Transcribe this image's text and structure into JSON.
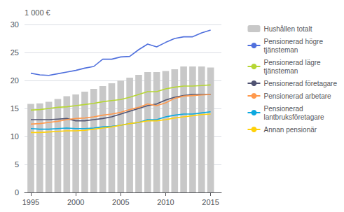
{
  "chart_data": {
    "type": "bar",
    "ylabel": "1 000 €",
    "x": [
      1995,
      1996,
      1997,
      1998,
      1999,
      2000,
      2001,
      2002,
      2003,
      2004,
      2005,
      2006,
      2007,
      2008,
      2009,
      2010,
      2011,
      2012,
      2013,
      2014,
      2015
    ],
    "series": [
      {
        "name": "Hushållen totalt",
        "type": "bar",
        "color": "#c8c8c8",
        "values": [
          15.8,
          15.9,
          16.2,
          16.7,
          17.2,
          17.5,
          18.0,
          18.5,
          19.0,
          19.5,
          20.0,
          20.5,
          21.0,
          21.5,
          21.5,
          21.7,
          22.0,
          22.5,
          22.5,
          22.5,
          22.3
        ]
      },
      {
        "name": "Pensionerad högre\ntjänsteman",
        "type": "line",
        "values": [
          21.3,
          21.0,
          20.9,
          21.2,
          21.5,
          21.8,
          22.2,
          22.5,
          23.8,
          23.8,
          24.2,
          24.3,
          25.5,
          26.5,
          26.0,
          26.8,
          27.5,
          27.8,
          27.8,
          28.5,
          29.0
        ]
      },
      {
        "name": "Pensionerad lägre\ntjänsteman",
        "type": "line",
        "values": [
          14.7,
          14.8,
          15.0,
          15.2,
          15.3,
          15.5,
          15.7,
          15.9,
          16.2,
          16.4,
          16.6,
          17.0,
          17.5,
          18.0,
          18.0,
          18.5,
          18.8,
          19.0,
          19.0,
          19.1,
          19.2
        ]
      },
      {
        "name": "Pensionerad företagare",
        "type": "line",
        "values": [
          13.0,
          13.0,
          13.0,
          13.1,
          13.2,
          12.8,
          12.8,
          13.0,
          13.2,
          13.5,
          14.0,
          14.5,
          15.0,
          15.5,
          15.8,
          16.5,
          17.0,
          17.3,
          17.5,
          17.5,
          17.5
        ]
      },
      {
        "name": "Pensionerad arbetare",
        "type": "line",
        "values": [
          12.2,
          12.3,
          12.5,
          12.7,
          13.0,
          13.2,
          13.3,
          13.5,
          13.8,
          14.0,
          14.3,
          14.8,
          15.2,
          15.8,
          15.5,
          16.0,
          16.8,
          17.2,
          17.3,
          17.4,
          17.5
        ]
      },
      {
        "name": "Pensionerad\nlantbruksföretagare",
        "type": "line",
        "values": [
          11.4,
          11.3,
          11.3,
          11.4,
          11.5,
          11.4,
          11.4,
          11.5,
          11.7,
          11.8,
          12.0,
          12.3,
          12.5,
          13.0,
          13.0,
          13.5,
          13.8,
          14.0,
          14.0,
          14.2,
          14.4
        ]
      },
      {
        "name": "Annan pensionär",
        "type": "line",
        "values": [
          10.7,
          10.7,
          10.8,
          10.9,
          11.0,
          11.0,
          11.1,
          11.3,
          11.5,
          11.7,
          12.0,
          12.3,
          12.5,
          12.8,
          12.8,
          13.0,
          13.3,
          13.5,
          13.7,
          13.9,
          14.0
        ]
      }
    ],
    "xlim": [
      1994.3,
      2016.2
    ],
    "xticks": [
      1995,
      2000,
      2005,
      2010,
      2015
    ],
    "ylim": [
      0,
      30
    ],
    "yticks": [
      0,
      5,
      10,
      15,
      20,
      25,
      30
    ],
    "grid": true,
    "legend": "right"
  }
}
